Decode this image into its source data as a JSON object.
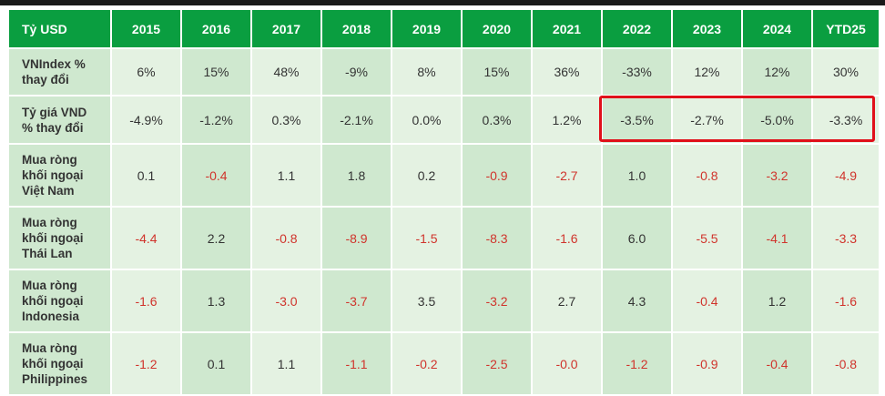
{
  "colors": {
    "header_bg": "#0a9e40",
    "row_bg_a": "#cfe8cf",
    "row_bg_b": "#e4f2e2",
    "top_line": "#1a1a1a",
    "highlight_border": "#e0101a",
    "negative_text": "#d0342c",
    "positive_text": "#333333"
  },
  "table": {
    "header_label": "Tỷ USD",
    "columns": [
      "2015",
      "2016",
      "2017",
      "2018",
      "2019",
      "2020",
      "2021",
      "2022",
      "2023",
      "2024",
      "YTD25"
    ],
    "rows": [
      {
        "label": [
          "VNIndex %",
          "thay đổi"
        ],
        "values": [
          "6%",
          "15%",
          "48%",
          "-9%",
          "8%",
          "15%",
          "36%",
          "-33%",
          "12%",
          "12%",
          "30%"
        ],
        "negative": [
          false,
          false,
          false,
          false,
          false,
          false,
          false,
          false,
          false,
          false,
          false
        ]
      },
      {
        "label": [
          "Tỷ giá VND",
          "% thay đổi"
        ],
        "values": [
          "-4.9%",
          "-1.2%",
          "0.3%",
          "-2.1%",
          "0.0%",
          "0.3%",
          "1.2%",
          "-3.5%",
          "-2.7%",
          "-5.0%",
          "-3.3%"
        ],
        "negative": [
          false,
          false,
          false,
          false,
          false,
          false,
          false,
          false,
          false,
          false,
          false
        ]
      },
      {
        "label": [
          "Mua ròng",
          "khối ngoại",
          "Việt Nam"
        ],
        "values": [
          "0.1",
          "-0.4",
          "1.1",
          "1.8",
          "0.2",
          "-0.9",
          "-2.7",
          "1.0",
          "-0.8",
          "-3.2",
          "-4.9"
        ],
        "negative": [
          false,
          true,
          false,
          false,
          false,
          true,
          true,
          false,
          true,
          true,
          true
        ]
      },
      {
        "label": [
          "Mua ròng",
          "khối ngoại",
          "Thái Lan"
        ],
        "values": [
          "-4.4",
          "2.2",
          "-0.8",
          "-8.9",
          "-1.5",
          "-8.3",
          "-1.6",
          "6.0",
          "-5.5",
          "-4.1",
          "-3.3"
        ],
        "negative": [
          true,
          false,
          true,
          true,
          true,
          true,
          true,
          false,
          true,
          true,
          true
        ]
      },
      {
        "label": [
          "Mua ròng",
          "khối ngoại",
          "Indonesia"
        ],
        "values": [
          "-1.6",
          "1.3",
          "-3.0",
          "-3.7",
          "3.5",
          "-3.2",
          "2.7",
          "4.3",
          "-0.4",
          "1.2",
          "-1.6"
        ],
        "negative": [
          true,
          false,
          true,
          true,
          false,
          true,
          false,
          false,
          true,
          false,
          true
        ]
      },
      {
        "label": [
          "Mua ròng",
          "khối ngoại",
          "Philippines"
        ],
        "values": [
          "-1.2",
          "0.1",
          "1.1",
          "-1.1",
          "-0.2",
          "-2.5",
          "-0.0",
          "-1.2",
          "-0.9",
          "-0.4",
          "-0.8"
        ],
        "negative": [
          true,
          false,
          false,
          true,
          true,
          true,
          true,
          true,
          true,
          true,
          true
        ]
      }
    ]
  }
}
